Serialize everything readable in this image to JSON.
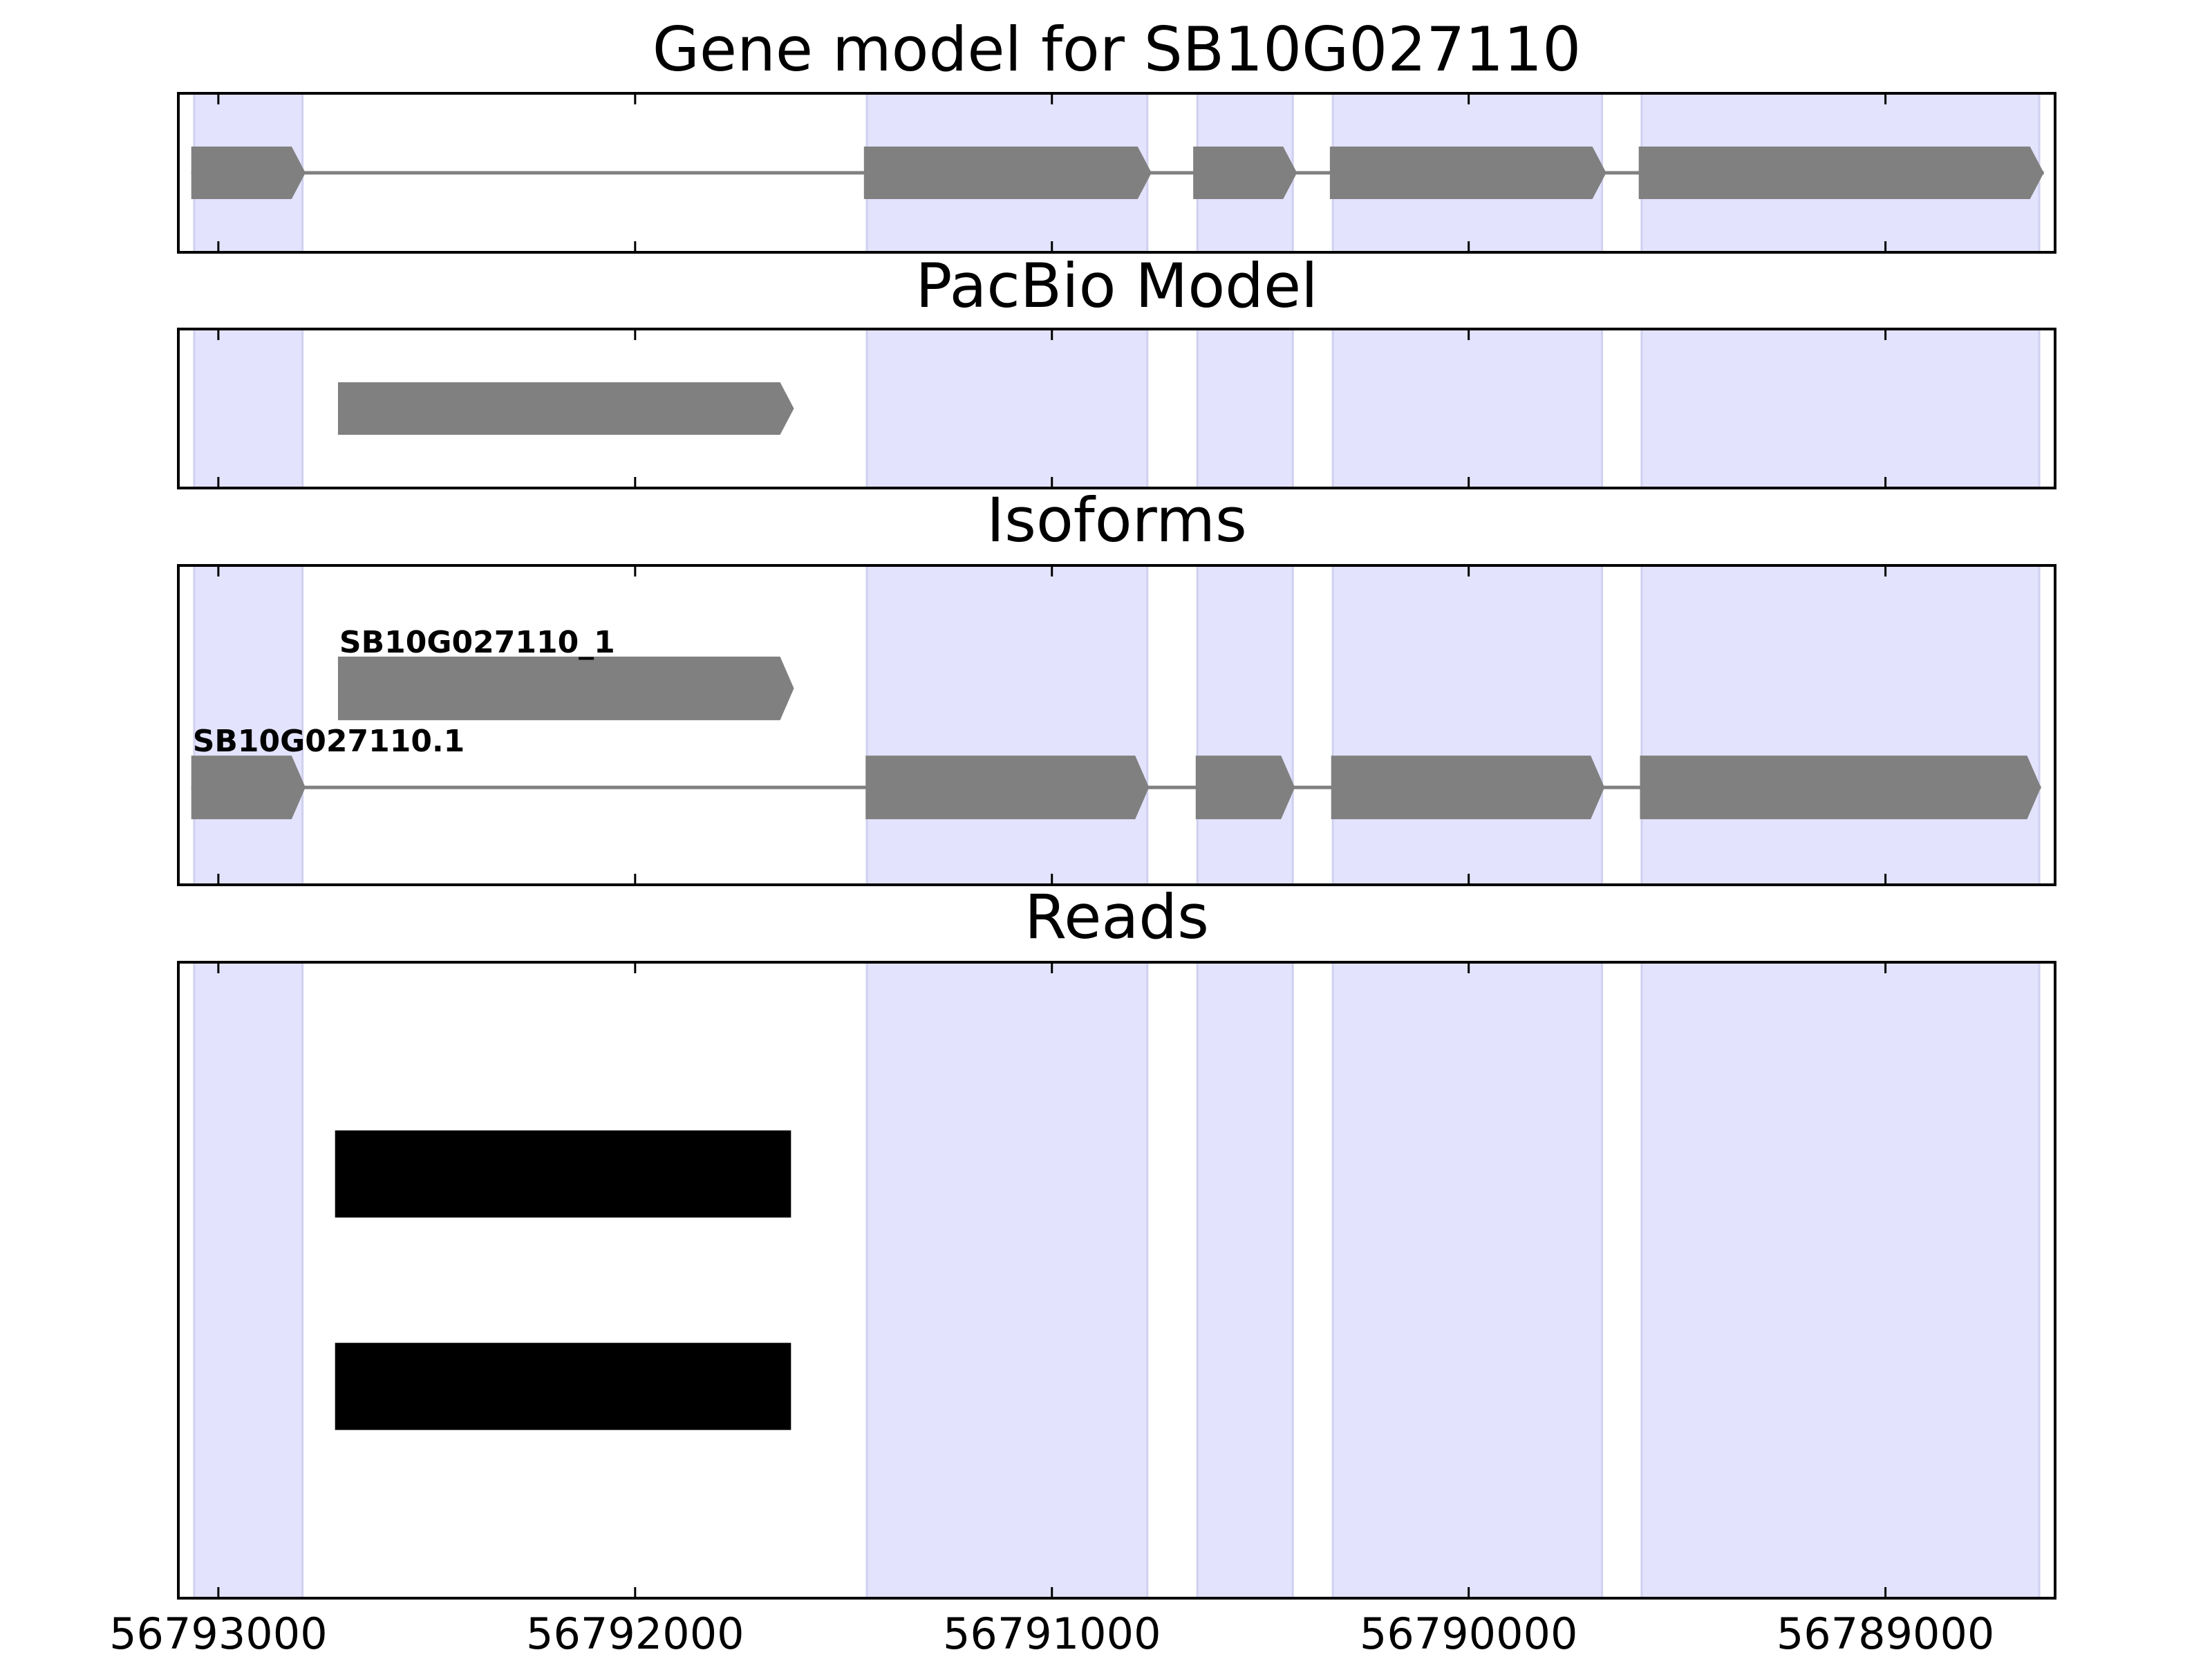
{
  "chart_data": {
    "type": "gene-tracks",
    "xlim": [
      56793096,
      56788593
    ],
    "xticks": [
      56793000,
      56792000,
      56791000,
      56790000,
      56789000
    ],
    "highlight_color": "#e3e3fd",
    "feature_color": "#808080",
    "read_color": "#000000",
    "highlights": [
      [
        56793058,
        56792798
      ],
      [
        56791444,
        56790771
      ],
      [
        56790651,
        56790422
      ],
      [
        56790326,
        56789680
      ],
      [
        56789585,
        56788631
      ]
    ],
    "panels": [
      {
        "title": "Gene model for SB10G027110",
        "genes": [
          {
            "exons": [
              [
                56793065,
                56792791
              ],
              [
                56791451,
                56790761
              ],
              [
                56790661,
                56790412
              ],
              [
                56790333,
                56789670
              ],
              [
                56789592,
                56788620
              ]
            ]
          }
        ]
      },
      {
        "title": "PacBio Model",
        "genes": [
          {
            "exons": [
              [
                56792713,
                56791619
              ]
            ]
          }
        ]
      },
      {
        "title": "Isoforms",
        "genes": [
          {
            "name": "SB10G027110_1",
            "exons": [
              [
                56792713,
                56791619
              ]
            ]
          },
          {
            "name": "SB10G027110.1",
            "exons": [
              [
                56793065,
                56792791
              ],
              [
                56791447,
                56790767
              ],
              [
                56790655,
                56790417
              ],
              [
                56790330,
                56789674
              ],
              [
                56789589,
                56788627
              ]
            ]
          }
        ]
      },
      {
        "title": "Reads",
        "reads": [
          [
            56792720,
            56791626
          ],
          [
            56792720,
            56791626
          ]
        ]
      }
    ]
  }
}
